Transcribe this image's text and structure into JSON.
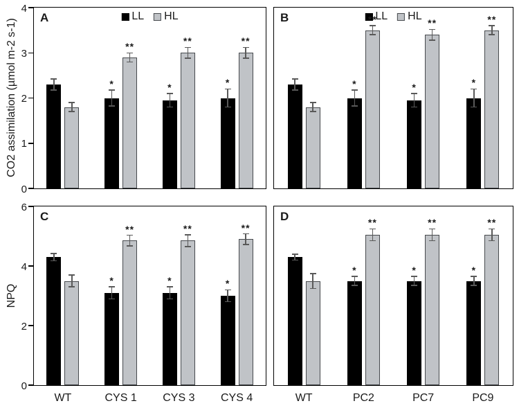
{
  "figure": {
    "background": "#ffffff",
    "axes": {
      "top_ylabel": "CO2 assimilation (µmol m-2 s-1)",
      "bottom_ylabel": "NPQ"
    },
    "colors": {
      "ll_fill": "#000000",
      "ll_border": "#000000",
      "hl_fill": "#c0c3c7",
      "hl_border": "#46494d",
      "error_bar": "#595959",
      "axis": "#000000",
      "text": "#1a1a1a"
    },
    "legend": {
      "ll_label": "LL",
      "hl_label": "HL"
    }
  },
  "chart_data": [
    {
      "type": "bar",
      "panel_label": "A",
      "ylabel": "CO2 assimilation (µmol m-2 s-1)",
      "ylim": [
        0,
        4
      ],
      "yticks": [
        0,
        1,
        2,
        3,
        4
      ],
      "show_ytick_labels": true,
      "show_xtick_labels": false,
      "legend": true,
      "grid": false,
      "categories": [
        "WT",
        "CYS 1",
        "CYS 3",
        "CYS 4"
      ],
      "series": [
        {
          "name": "LL",
          "values": [
            2.3,
            2.0,
            1.95,
            2.0
          ],
          "errors": [
            0.12,
            0.18,
            0.15,
            0.2
          ],
          "sig": [
            "",
            "*",
            "*",
            "*"
          ]
        },
        {
          "name": "HL",
          "values": [
            1.8,
            2.9,
            3.0,
            3.0
          ],
          "errors": [
            0.1,
            0.1,
            0.12,
            0.12
          ],
          "sig": [
            "",
            "**",
            "**",
            "**"
          ]
        }
      ]
    },
    {
      "type": "bar",
      "panel_label": "B",
      "ylabel": "CO2 assimilation (µmol m-2 s-1)",
      "ylim": [
        0,
        4
      ],
      "yticks": [
        0,
        1,
        2,
        3,
        4
      ],
      "show_ytick_labels": false,
      "show_xtick_labels": false,
      "legend": true,
      "grid": false,
      "categories": [
        "WT",
        "PC2",
        "PC7",
        "PC9"
      ],
      "series": [
        {
          "name": "LL",
          "values": [
            2.3,
            2.0,
            1.95,
            2.0
          ],
          "errors": [
            0.12,
            0.18,
            0.15,
            0.2
          ],
          "sig": [
            "",
            "*",
            "*",
            "*"
          ]
        },
        {
          "name": "HL",
          "values": [
            1.8,
            3.5,
            3.4,
            3.5
          ],
          "errors": [
            0.1,
            0.1,
            0.12,
            0.1
          ],
          "sig": [
            "",
            "**",
            "**",
            "**"
          ]
        }
      ]
    },
    {
      "type": "bar",
      "panel_label": "C",
      "ylabel": "NPQ",
      "ylim": [
        0,
        6
      ],
      "yticks": [
        0,
        2,
        4,
        6
      ],
      "show_ytick_labels": true,
      "show_xtick_labels": true,
      "legend": false,
      "grid": false,
      "categories": [
        "WT",
        "CYS 1",
        "CYS 3",
        "CYS 4"
      ],
      "series": [
        {
          "name": "LL",
          "values": [
            4.3,
            3.1,
            3.1,
            3.0
          ],
          "errors": [
            0.12,
            0.2,
            0.2,
            0.2
          ],
          "sig": [
            "",
            "*",
            "*",
            "*"
          ]
        },
        {
          "name": "HL",
          "values": [
            3.5,
            4.85,
            4.85,
            4.9
          ],
          "errors": [
            0.2,
            0.18,
            0.2,
            0.18
          ],
          "sig": [
            "",
            "**",
            "**",
            "**"
          ]
        }
      ]
    },
    {
      "type": "bar",
      "panel_label": "D",
      "ylabel": "NPQ",
      "ylim": [
        0,
        6
      ],
      "yticks": [
        0,
        2,
        4,
        6
      ],
      "show_ytick_labels": false,
      "show_xtick_labels": true,
      "legend": false,
      "grid": false,
      "categories": [
        "WT",
        "PC2",
        "PC7",
        "PC9"
      ],
      "series": [
        {
          "name": "LL",
          "values": [
            4.3,
            3.5,
            3.5,
            3.5
          ],
          "errors": [
            0.1,
            0.15,
            0.15,
            0.15
          ],
          "sig": [
            "",
            "*",
            "*",
            "*"
          ]
        },
        {
          "name": "HL",
          "values": [
            3.5,
            5.05,
            5.05,
            5.05
          ],
          "errors": [
            0.25,
            0.2,
            0.2,
            0.2
          ],
          "sig": [
            "",
            "**",
            "**",
            "**"
          ]
        }
      ]
    }
  ]
}
